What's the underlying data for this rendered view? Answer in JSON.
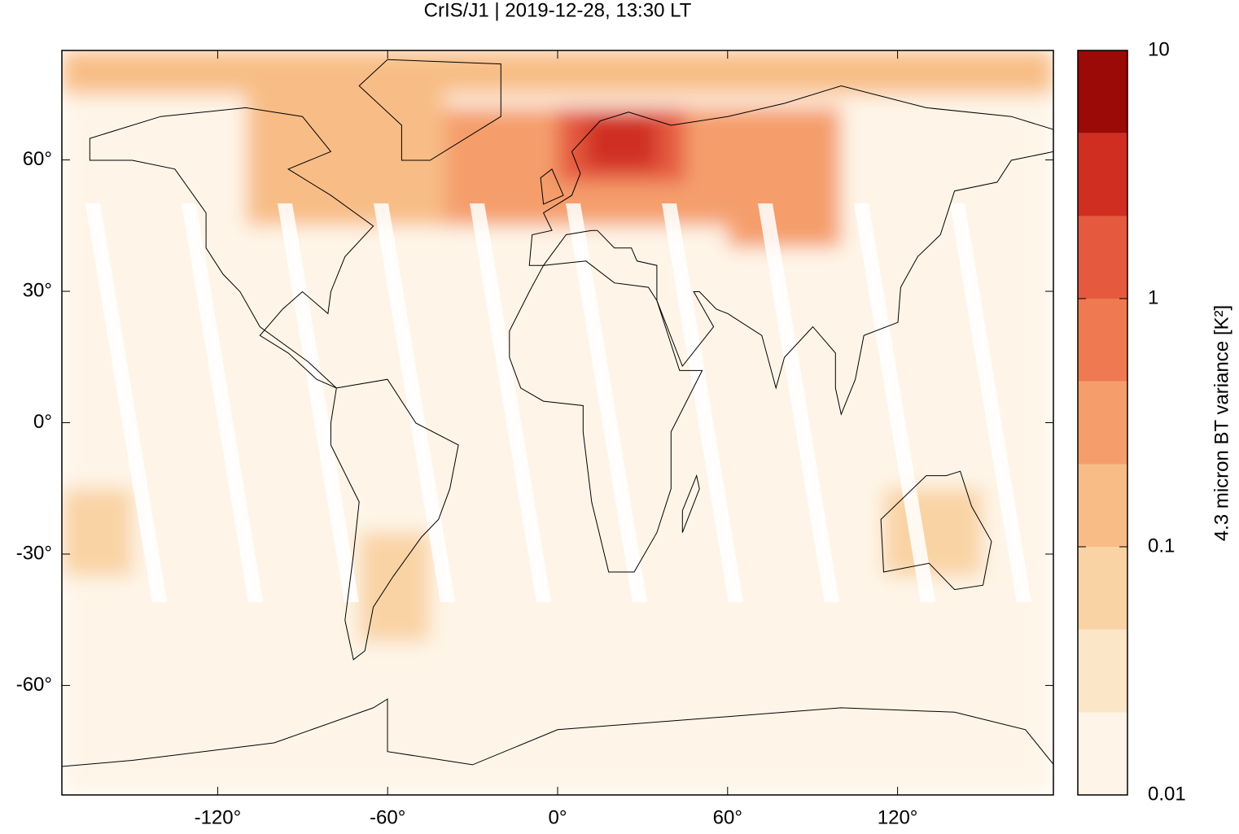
{
  "chart_data": {
    "type": "heatmap",
    "title": "CrIS/J1 | 2019-12-28, 13:30 LT",
    "xlim": [
      -175,
      175
    ],
    "ylim": [
      -85,
      85
    ],
    "xticks": [
      {
        "value": -120,
        "label": "-120°"
      },
      {
        "value": -60,
        "label": "-60°"
      },
      {
        "value": 0,
        "label": "0°"
      },
      {
        "value": 60,
        "label": "60°"
      },
      {
        "value": 120,
        "label": "120°"
      }
    ],
    "yticks": [
      {
        "value": 60,
        "label": "60°"
      },
      {
        "value": 30,
        "label": "30°"
      },
      {
        "value": 0,
        "label": "0°"
      },
      {
        "value": -30,
        "label": "-30°"
      },
      {
        "value": -60,
        "label": "-60°"
      }
    ],
    "cells": [
      {
        "lon": [
          -175,
          175
        ],
        "lat": [
          -85,
          85
        ],
        "value": 0.01
      },
      {
        "lon": [
          -175,
          175
        ],
        "lat": [
          75,
          85
        ],
        "value": 0.12
      },
      {
        "lon": [
          -110,
          -40
        ],
        "lat": [
          45,
          80
        ],
        "value": 0.15
      },
      {
        "lon": [
          -40,
          100
        ],
        "lat": [
          45,
          72
        ],
        "value": 0.3
      },
      {
        "lon": [
          60,
          100
        ],
        "lat": [
          40,
          55
        ],
        "value": 0.4
      },
      {
        "lon": [
          0,
          45
        ],
        "lat": [
          55,
          72
        ],
        "value": 1.5
      },
      {
        "lon": [
          10,
          35
        ],
        "lat": [
          58,
          70
        ],
        "value": 3
      },
      {
        "lon": [
          -70,
          -45
        ],
        "lat": [
          -50,
          -25
        ],
        "value": 0.08
      },
      {
        "lon": [
          115,
          150
        ],
        "lat": [
          -35,
          -15
        ],
        "value": 0.06
      },
      {
        "lon": [
          -175,
          -150
        ],
        "lat": [
          -35,
          -15
        ],
        "value": 0.05
      }
    ],
    "colorbar": {
      "label": "4.3 micron BT variance [K²]",
      "log": true,
      "clim": [
        0.01,
        10
      ],
      "ticks": [
        0.01,
        0.1,
        1,
        10
      ],
      "levels": [
        0.01,
        0.0215,
        0.0464,
        0.1,
        0.215,
        0.464,
        1,
        2.15,
        4.64,
        10
      ],
      "colors": [
        "#fef5e8",
        "#fbe6c8",
        "#f9d3a4",
        "#f8bd86",
        "#f59e6c",
        "#ef7950",
        "#e55a3f",
        "#cf2e21",
        "#9b0a06"
      ]
    }
  }
}
